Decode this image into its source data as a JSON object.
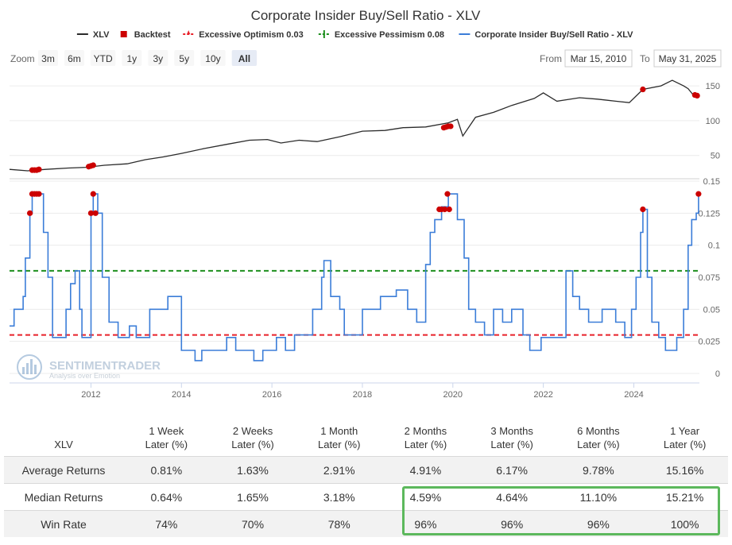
{
  "colors": {
    "price_line": "#2b2b2b",
    "ratio_line": "#3b7dd8",
    "backtest": "#cc0000",
    "optimism": "#e8212a",
    "pessimism": "#1e8f1e",
    "highlight": "#5cb85c"
  },
  "toolbar": {
    "zoom_label": "Zoom",
    "zoom_buttons": [
      "3m",
      "6m",
      "YTD",
      "1y",
      "3y",
      "5y",
      "10y",
      "All"
    ],
    "active_zoom": "All",
    "from_label": "From",
    "from_value": "Mar 15, 2010",
    "to_label": "To",
    "to_value": "May 31, 2025"
  },
  "watermark": {
    "brand": "SENTIMENTRADER",
    "tagline": "Analysis over Emotion"
  },
  "chart_data": {
    "type": "line",
    "title": "Corporate Insider Buy/Sell Ratio - XLV",
    "legend": [
      {
        "name": "XLV",
        "marker": "line",
        "color": "#2b2b2b"
      },
      {
        "name": "Backtest",
        "marker": "square",
        "color": "#cc0000"
      },
      {
        "name": "Excessive Optimism 0.03",
        "marker": "dashed-star",
        "color": "#e8212a"
      },
      {
        "name": "Excessive Pessimism 0.08",
        "marker": "dashed-plus",
        "color": "#1e8f1e"
      },
      {
        "name": "Corporate Insider Buy/Sell Ratio - XLV",
        "marker": "line",
        "color": "#3b7dd8"
      }
    ],
    "x_range": [
      2010.2,
      2025.45
    ],
    "x_ticks": [
      2012,
      2014,
      2016,
      2018,
      2020,
      2022,
      2024
    ],
    "upper_panel": {
      "series": "XLV",
      "y_range": [
        20,
        165
      ],
      "y_ticks": [
        50,
        100,
        150
      ],
      "points": [
        [
          2010.2,
          30
        ],
        [
          2010.6,
          28
        ],
        [
          2011.0,
          30
        ],
        [
          2011.5,
          32
        ],
        [
          2011.9,
          33
        ],
        [
          2012.3,
          36
        ],
        [
          2012.8,
          38
        ],
        [
          2013.2,
          44
        ],
        [
          2013.6,
          48
        ],
        [
          2014.0,
          53
        ],
        [
          2014.5,
          60
        ],
        [
          2015.0,
          66
        ],
        [
          2015.5,
          72
        ],
        [
          2015.9,
          73
        ],
        [
          2016.2,
          68
        ],
        [
          2016.6,
          72
        ],
        [
          2017.0,
          70
        ],
        [
          2017.5,
          77
        ],
        [
          2018.0,
          85
        ],
        [
          2018.5,
          86
        ],
        [
          2018.9,
          90
        ],
        [
          2019.4,
          91
        ],
        [
          2019.9,
          97
        ],
        [
          2020.1,
          102
        ],
        [
          2020.22,
          78
        ],
        [
          2020.5,
          105
        ],
        [
          2020.9,
          112
        ],
        [
          2021.3,
          122
        ],
        [
          2021.8,
          132
        ],
        [
          2022.0,
          140
        ],
        [
          2022.3,
          128
        ],
        [
          2022.8,
          133
        ],
        [
          2023.2,
          131
        ],
        [
          2023.6,
          128
        ],
        [
          2023.9,
          126
        ],
        [
          2024.2,
          145
        ],
        [
          2024.6,
          150
        ],
        [
          2024.85,
          158
        ],
        [
          2025.1,
          150
        ],
        [
          2025.2,
          146
        ],
        [
          2025.3,
          138
        ],
        [
          2025.4,
          136
        ]
      ],
      "backtest": [
        [
          2010.7,
          29
        ],
        [
          2010.75,
          29
        ],
        [
          2010.8,
          29
        ],
        [
          2010.85,
          30
        ],
        [
          2011.95,
          34
        ],
        [
          2012.0,
          35
        ],
        [
          2012.05,
          36
        ],
        [
          2019.8,
          90
        ],
        [
          2019.85,
          91
        ],
        [
          2019.9,
          92
        ],
        [
          2019.95,
          92
        ],
        [
          2024.2,
          145
        ],
        [
          2025.35,
          137
        ],
        [
          2025.4,
          136
        ]
      ]
    },
    "lower_panel": {
      "series": "Corporate Insider Buy/Sell Ratio - XLV",
      "y_range": [
        0,
        0.15
      ],
      "y_ticks": [
        0,
        0.025,
        0.05,
        0.075,
        0.1,
        0.125,
        0.15
      ],
      "excessive_optimism": 0.03,
      "excessive_pessimism": 0.08,
      "points": [
        [
          2010.2,
          0.037
        ],
        [
          2010.3,
          0.05
        ],
        [
          2010.45,
          0.05
        ],
        [
          2010.5,
          0.06
        ],
        [
          2010.55,
          0.09
        ],
        [
          2010.65,
          0.125
        ],
        [
          2010.7,
          0.14
        ],
        [
          2010.85,
          0.14
        ],
        [
          2010.95,
          0.11
        ],
        [
          2011.05,
          0.075
        ],
        [
          2011.15,
          0.028
        ],
        [
          2011.4,
          0.028
        ],
        [
          2011.45,
          0.05
        ],
        [
          2011.55,
          0.07
        ],
        [
          2011.65,
          0.08
        ],
        [
          2011.75,
          0.05
        ],
        [
          2011.8,
          0.028
        ],
        [
          2011.9,
          0.028
        ],
        [
          2012.0,
          0.125
        ],
        [
          2012.05,
          0.14
        ],
        [
          2012.15,
          0.125
        ],
        [
          2012.25,
          0.075
        ],
        [
          2012.4,
          0.04
        ],
        [
          2012.6,
          0.028
        ],
        [
          2012.75,
          0.028
        ],
        [
          2012.85,
          0.037
        ],
        [
          2013.0,
          0.028
        ],
        [
          2013.2,
          0.028
        ],
        [
          2013.3,
          0.05
        ],
        [
          2013.7,
          0.06
        ],
        [
          2013.95,
          0.06
        ],
        [
          2014.0,
          0.018
        ],
        [
          2014.2,
          0.018
        ],
        [
          2014.3,
          0.01
        ],
        [
          2014.45,
          0.018
        ],
        [
          2014.9,
          0.018
        ],
        [
          2015.0,
          0.028
        ],
        [
          2015.2,
          0.018
        ],
        [
          2015.5,
          0.018
        ],
        [
          2015.6,
          0.01
        ],
        [
          2015.8,
          0.018
        ],
        [
          2016.0,
          0.018
        ],
        [
          2016.1,
          0.028
        ],
        [
          2016.3,
          0.018
        ],
        [
          2016.5,
          0.03
        ],
        [
          2016.9,
          0.05
        ],
        [
          2017.1,
          0.075
        ],
        [
          2017.15,
          0.088
        ],
        [
          2017.3,
          0.06
        ],
        [
          2017.5,
          0.05
        ],
        [
          2017.6,
          0.03
        ],
        [
          2018.0,
          0.05
        ],
        [
          2018.4,
          0.06
        ],
        [
          2018.75,
          0.065
        ],
        [
          2019.0,
          0.05
        ],
        [
          2019.2,
          0.04
        ],
        [
          2019.4,
          0.085
        ],
        [
          2019.5,
          0.11
        ],
        [
          2019.6,
          0.12
        ],
        [
          2019.75,
          0.13
        ],
        [
          2019.9,
          0.14
        ],
        [
          2020.1,
          0.12
        ],
        [
          2020.25,
          0.09
        ],
        [
          2020.35,
          0.05
        ],
        [
          2020.5,
          0.04
        ],
        [
          2020.7,
          0.03
        ],
        [
          2020.9,
          0.05
        ],
        [
          2021.1,
          0.04
        ],
        [
          2021.3,
          0.05
        ],
        [
          2021.55,
          0.03
        ],
        [
          2021.7,
          0.018
        ],
        [
          2021.85,
          0.018
        ],
        [
          2021.95,
          0.028
        ],
        [
          2022.2,
          0.028
        ],
        [
          2022.4,
          0.028
        ],
        [
          2022.5,
          0.08
        ],
        [
          2022.65,
          0.06
        ],
        [
          2022.8,
          0.05
        ],
        [
          2023.0,
          0.04
        ],
        [
          2023.3,
          0.05
        ],
        [
          2023.6,
          0.04
        ],
        [
          2023.8,
          0.028
        ],
        [
          2023.95,
          0.05
        ],
        [
          2024.05,
          0.075
        ],
        [
          2024.15,
          0.11
        ],
        [
          2024.2,
          0.128
        ],
        [
          2024.3,
          0.075
        ],
        [
          2024.4,
          0.04
        ],
        [
          2024.55,
          0.028
        ],
        [
          2024.7,
          0.018
        ],
        [
          2024.9,
          0.018
        ],
        [
          2024.95,
          0.028
        ],
        [
          2025.05,
          0.028
        ],
        [
          2025.1,
          0.05
        ],
        [
          2025.2,
          0.1
        ],
        [
          2025.28,
          0.12
        ],
        [
          2025.38,
          0.125
        ],
        [
          2025.43,
          0.14
        ]
      ],
      "backtest": [
        [
          2010.65,
          0.125
        ],
        [
          2010.7,
          0.14
        ],
        [
          2010.75,
          0.14
        ],
        [
          2010.8,
          0.14
        ],
        [
          2010.85,
          0.14
        ],
        [
          2012.0,
          0.125
        ],
        [
          2012.05,
          0.14
        ],
        [
          2012.1,
          0.125
        ],
        [
          2019.7,
          0.128
        ],
        [
          2019.75,
          0.128
        ],
        [
          2019.82,
          0.128
        ],
        [
          2019.88,
          0.14
        ],
        [
          2019.92,
          0.128
        ],
        [
          2024.2,
          0.128
        ],
        [
          2025.43,
          0.14
        ]
      ]
    }
  },
  "table": {
    "row_header": "XLV",
    "columns": [
      [
        "1 Week",
        "Later (%)"
      ],
      [
        "2 Weeks",
        "Later (%)"
      ],
      [
        "1 Month",
        "Later (%)"
      ],
      [
        "2 Months",
        "Later (%)"
      ],
      [
        "3 Months",
        "Later (%)"
      ],
      [
        "6 Months",
        "Later (%)"
      ],
      [
        "1 Year",
        "Later (%)"
      ]
    ],
    "rows": [
      {
        "label": "Average Returns",
        "values": [
          "0.81%",
          "1.63%",
          "2.91%",
          "4.91%",
          "6.17%",
          "9.78%",
          "15.16%"
        ]
      },
      {
        "label": "Median Returns",
        "values": [
          "0.64%",
          "1.65%",
          "3.18%",
          "4.59%",
          "4.64%",
          "11.10%",
          "15.21%"
        ]
      },
      {
        "label": "Win Rate",
        "values": [
          "74%",
          "70%",
          "78%",
          "96%",
          "96%",
          "96%",
          "100%"
        ]
      }
    ]
  }
}
